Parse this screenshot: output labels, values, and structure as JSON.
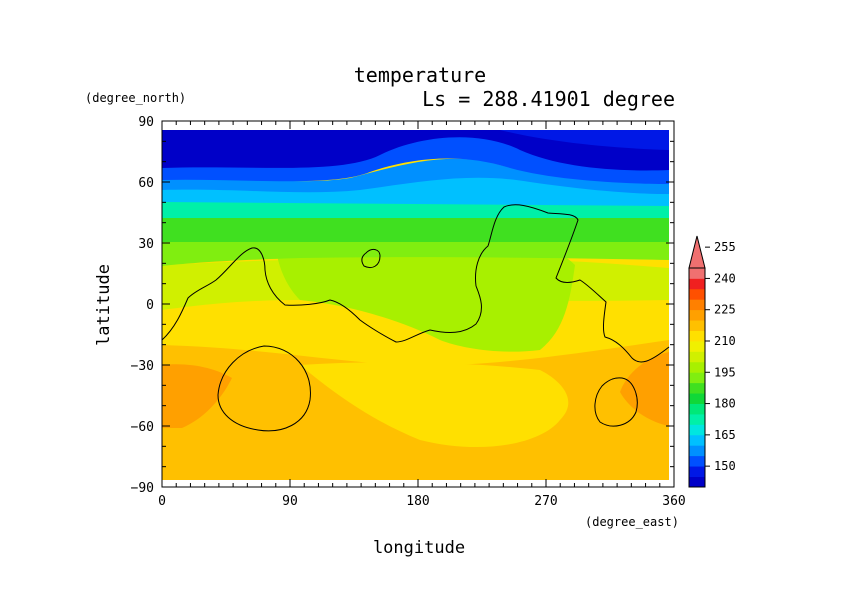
{
  "chart_data": {
    "type": "heatmap",
    "title": "temperature",
    "subtitle": "Ls = 288.41901 degree",
    "xlabel": "longitude",
    "ylabel": "latitude",
    "x_units": "(degree_east)",
    "y_units": "(degree_north)",
    "xlim": [
      0,
      360
    ],
    "ylim": [
      -90,
      90
    ],
    "x_ticks": [
      0,
      90,
      180,
      270,
      360
    ],
    "y_ticks": [
      90,
      60,
      30,
      0,
      -30,
      -60,
      -90
    ],
    "x_tick_labels": [
      "0",
      "90",
      "180",
      "270",
      "360"
    ],
    "y_tick_labels": [
      "90",
      "60",
      "30",
      "0",
      "−30",
      "−60",
      "−90"
    ],
    "colorbar": {
      "min": 140,
      "step": 5,
      "labels": [
        "150",
        "165",
        "180",
        "195",
        "210",
        "225",
        "240",
        "255"
      ],
      "extend": "max",
      "colors": [
        "#0000c8",
        "#0018e6",
        "#0050ff",
        "#0090ff",
        "#00c0ff",
        "#00e6e0",
        "#00f0a8",
        "#00e878",
        "#10d838",
        "#40e020",
        "#80ee10",
        "#a8f000",
        "#d0f000",
        "#f0f000",
        "#ffe000",
        "#ffc000",
        "#ffa000",
        "#ff8000",
        "#ff5000",
        "#f02020",
        "#f07070"
      ]
    },
    "contour_level_value": 0
  }
}
